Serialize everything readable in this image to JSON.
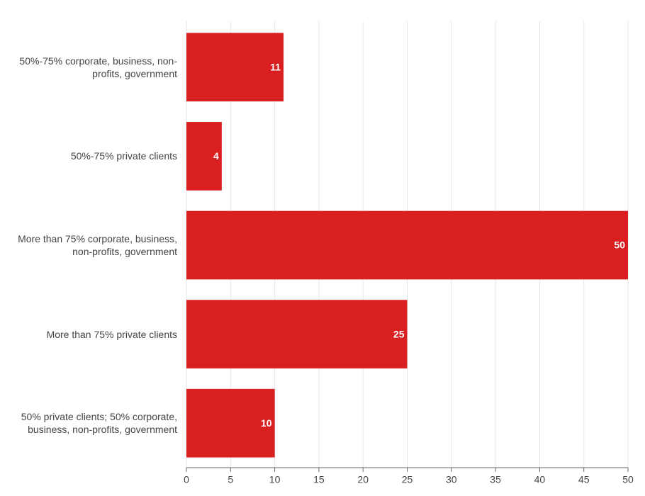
{
  "chart_data": {
    "type": "bar",
    "orientation": "horizontal",
    "categories": [
      "50%-75% corporate, business, non-profits, government",
      "50%-75% private clients",
      "More than 75% corporate, business, non-profits, government",
      "More than 75% private clients",
      "50% private clients; 50% corporate, business, non-profits, government"
    ],
    "values": [
      11,
      4,
      50,
      25,
      10
    ],
    "color": "#d91f1f",
    "xlim": [
      0,
      50
    ],
    "xticks": [
      0,
      5,
      10,
      15,
      20,
      25,
      30,
      35,
      40,
      45,
      50
    ],
    "grid": true
  }
}
